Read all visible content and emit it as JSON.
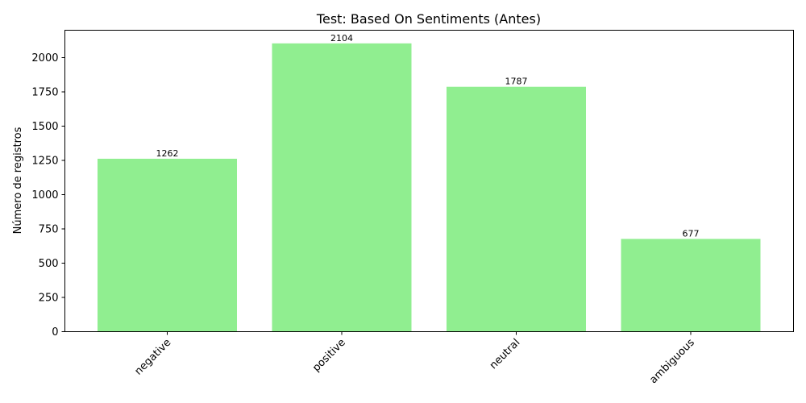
{
  "chart_data": {
    "type": "bar",
    "title": "Test: Based On Sentiments (Antes)",
    "xlabel": "",
    "ylabel": "Número de registros",
    "categories": [
      "negative",
      "positive",
      "neutral",
      "ambiguous"
    ],
    "values": [
      1262,
      2104,
      1787,
      677
    ],
    "data_labels": [
      "1262",
      "2104",
      "1787",
      "677"
    ],
    "ylim": [
      0,
      2200
    ],
    "yticks": [
      0,
      250,
      500,
      750,
      1000,
      1250,
      1500,
      1750,
      2000
    ],
    "ytick_labels": [
      "0",
      "250",
      "500",
      "750",
      "1000",
      "1250",
      "1500",
      "1750",
      "2000"
    ],
    "bar_color": "#90ee90",
    "grid": false,
    "xtick_rotation": 45
  }
}
